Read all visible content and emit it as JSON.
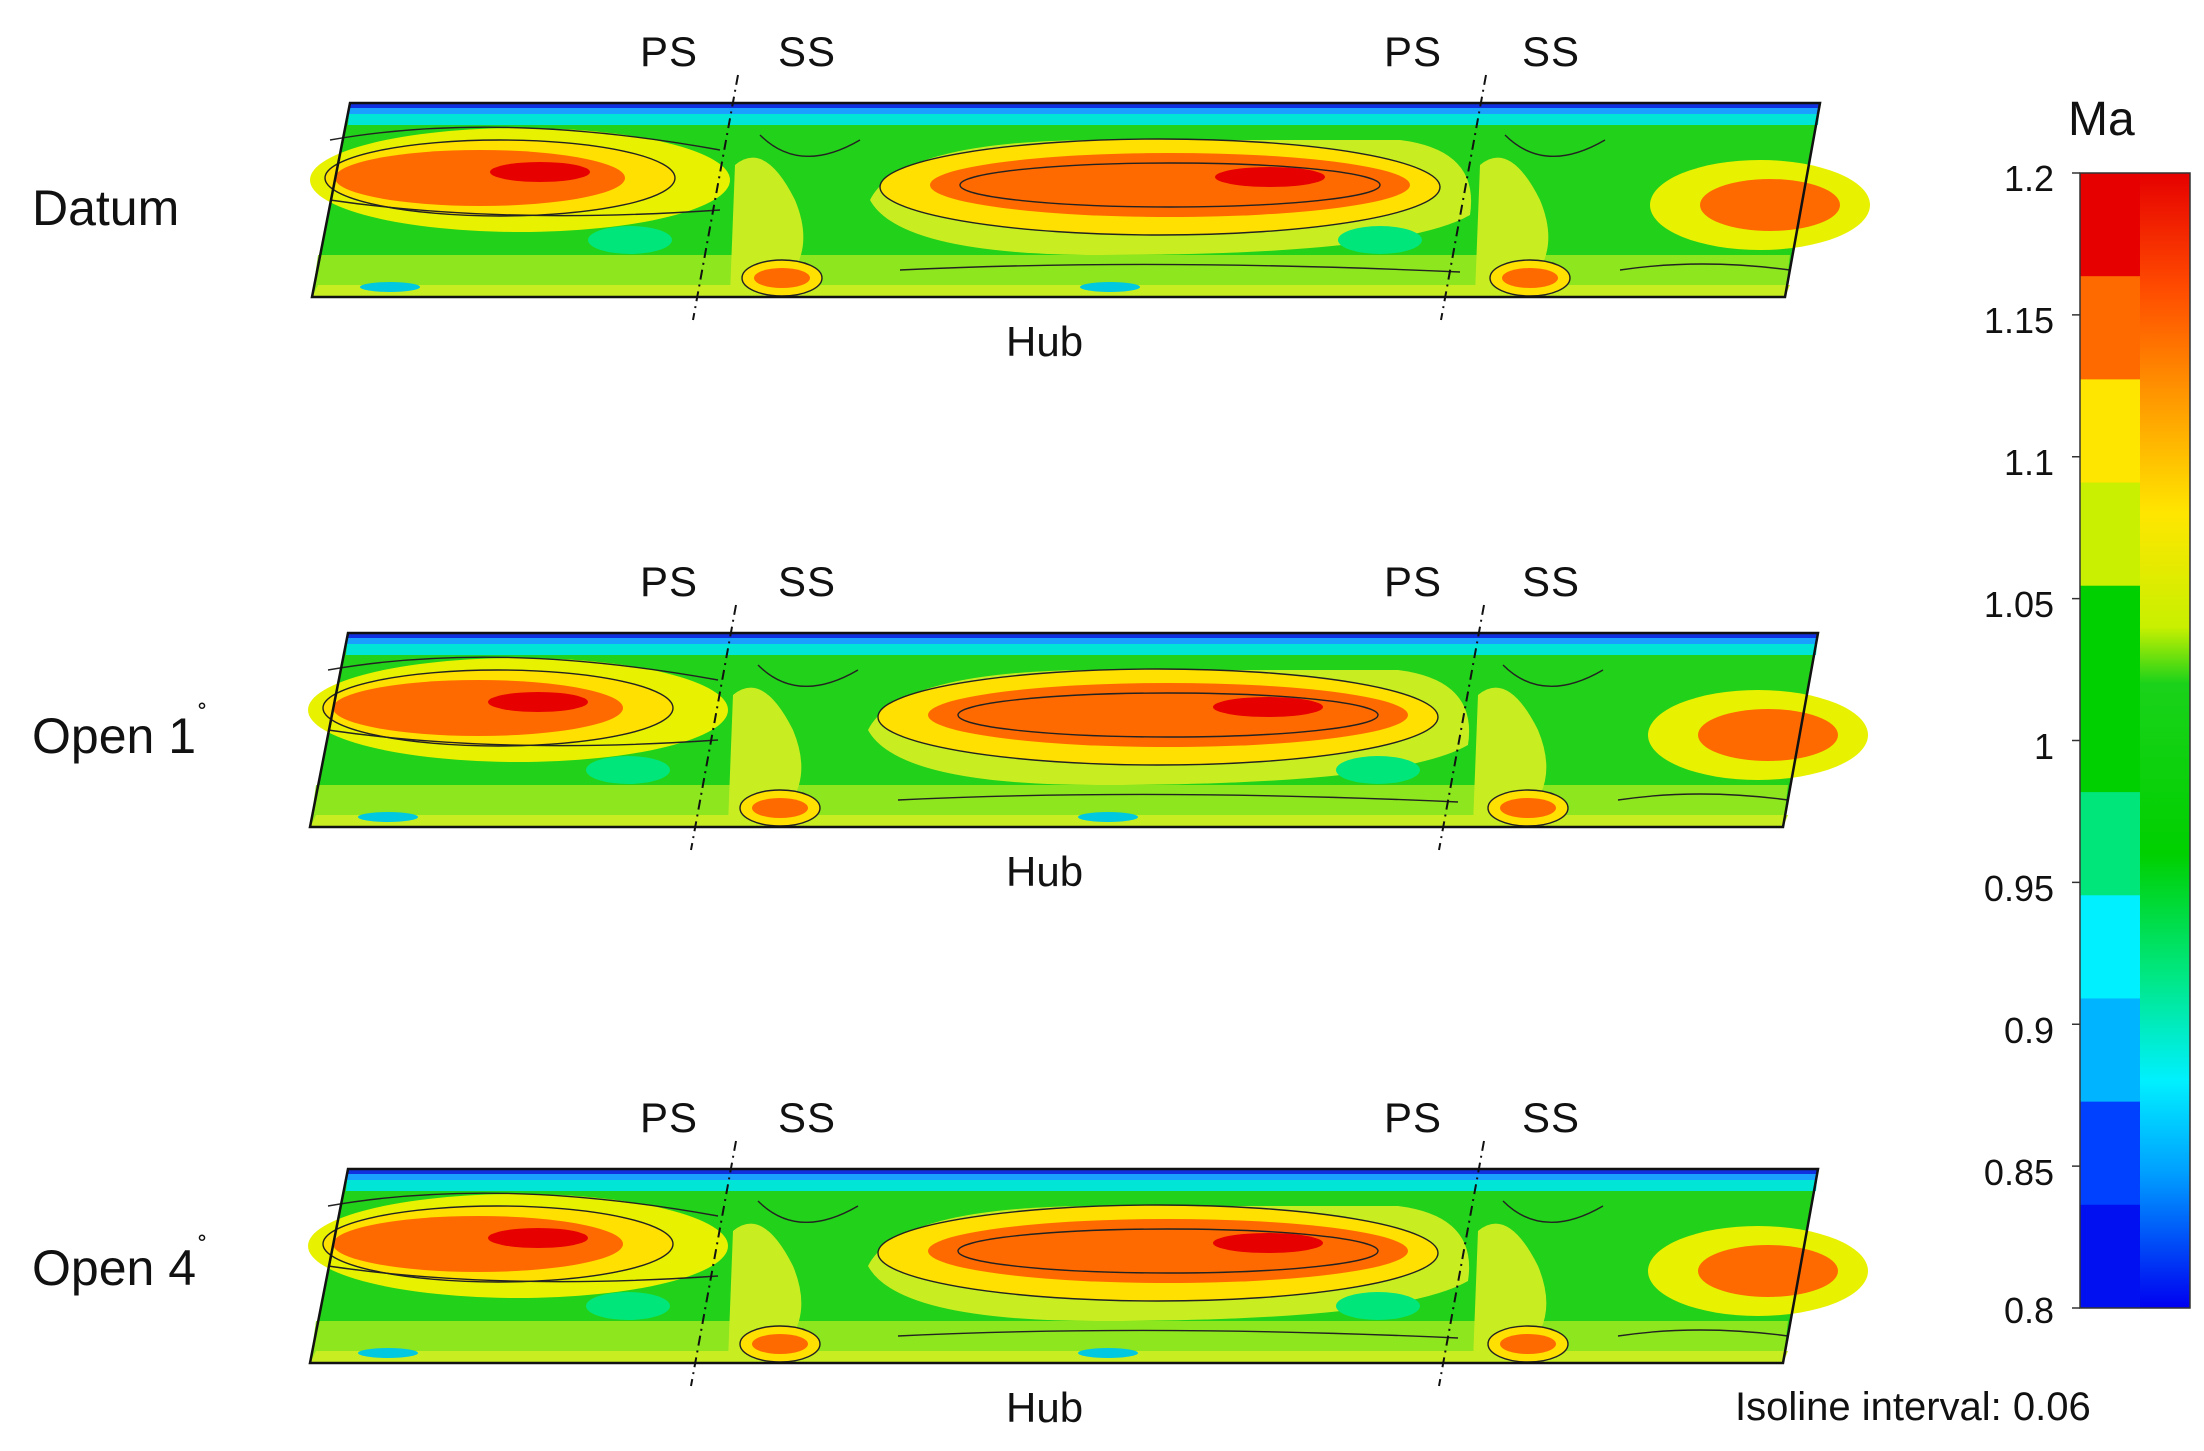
{
  "panels": [
    {
      "label": "Datum",
      "degree_mark": ""
    },
    {
      "label": "Open 1",
      "degree_mark": "˚"
    },
    {
      "label": "Open 4",
      "degree_mark": "˚"
    }
  ],
  "markers": {
    "ps": "PS",
    "ss": "SS",
    "hub": "Hub"
  },
  "colorbar": {
    "title": "Ma",
    "ticks": [
      "1.2",
      "1.15",
      "1.1",
      "1.05",
      "1",
      "0.95",
      "0.9",
      "0.85",
      "0.8"
    ],
    "levels": [
      "#e60000",
      "#ff6a00",
      "#ffe600",
      "#c8f000",
      "#00d000",
      "#00d000",
      "#00e67a",
      "#00f0ff",
      "#00b4ff",
      "#0040ff",
      "#0010f0"
    ]
  },
  "isoline_note": "Isoline interval: 0.06"
}
